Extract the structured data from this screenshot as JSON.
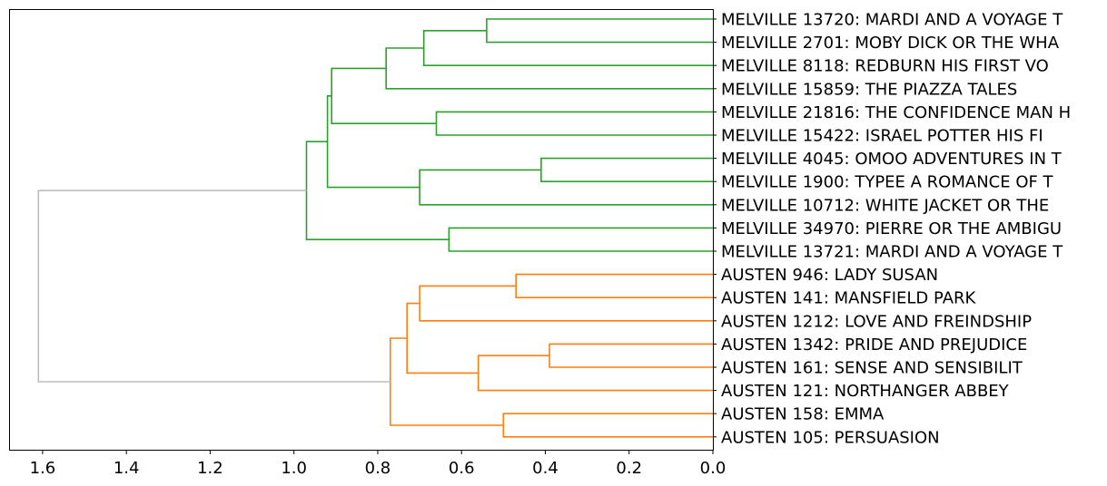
{
  "chart_data": {
    "type": "dendrogram",
    "orientation": "left",
    "xlim": [
      1.68,
      0.0
    ],
    "x_ticks": [
      1.6,
      1.4,
      1.2,
      1.0,
      0.8,
      0.6,
      0.4,
      0.2,
      0.0
    ],
    "x_tick_labels": [
      "1.6",
      "1.4",
      "1.2",
      "1.0",
      "0.8",
      "0.6",
      "0.4",
      "0.2",
      "0.0"
    ],
    "colors": {
      "melville_cluster": "#2ca02c",
      "austen_cluster": "#ff7f0e",
      "root": "#bdbdbd"
    },
    "leaves": [
      "MELVILLE 13720: MARDI AND A VOYAGE T",
      "MELVILLE 2701: MOBY DICK OR THE WHA",
      "MELVILLE 8118: REDBURN HIS FIRST VO",
      "MELVILLE 15859: THE PIAZZA TALES",
      "MELVILLE 21816: THE CONFIDENCE MAN H",
      "MELVILLE 15422: ISRAEL POTTER HIS FI",
      "MELVILLE 4045: OMOO ADVENTURES IN T",
      "MELVILLE 1900: TYPEE A ROMANCE OF T",
      "MELVILLE 10712: WHITE JACKET OR THE",
      "MELVILLE 34970: PIERRE OR THE AMBIGU",
      "MELVILLE 13721: MARDI AND A VOYAGE T",
      "AUSTEN 946: LADY SUSAN",
      "AUSTEN 141: MANSFIELD PARK",
      "AUSTEN 1212: LOVE AND FREINDSHIP",
      "AUSTEN 1342: PRIDE AND PREJUDICE",
      "AUSTEN 161: SENSE AND SENSIBILIT",
      "AUSTEN 121: NORTHANGER ABBEY",
      "AUSTEN 158: EMMA",
      "AUSTEN 105: PERSUASION"
    ],
    "merges": [
      {
        "id": "m1",
        "a": 0,
        "b": 1,
        "height": 0.54,
        "cluster": "melville_cluster"
      },
      {
        "id": "m2",
        "a": "m1",
        "b": 2,
        "height": 0.69,
        "cluster": "melville_cluster"
      },
      {
        "id": "m3",
        "a": "m2",
        "b": 3,
        "height": 0.78,
        "cluster": "melville_cluster"
      },
      {
        "id": "m4",
        "a": 4,
        "b": 5,
        "height": 0.66,
        "cluster": "melville_cluster"
      },
      {
        "id": "m5",
        "a": "m3",
        "b": "m4",
        "height": 0.91,
        "cluster": "melville_cluster"
      },
      {
        "id": "m6",
        "a": 6,
        "b": 7,
        "height": 0.41,
        "cluster": "melville_cluster"
      },
      {
        "id": "m7",
        "a": "m6",
        "b": 8,
        "height": 0.7,
        "cluster": "melville_cluster"
      },
      {
        "id": "m8",
        "a": "m5",
        "b": "m7",
        "height": 0.92,
        "cluster": "melville_cluster"
      },
      {
        "id": "m9",
        "a": 9,
        "b": 10,
        "height": 0.63,
        "cluster": "melville_cluster"
      },
      {
        "id": "m10",
        "a": "m8",
        "b": "m9",
        "height": 0.97,
        "cluster": "melville_cluster"
      },
      {
        "id": "a1",
        "a": 11,
        "b": 12,
        "height": 0.47,
        "cluster": "austen_cluster"
      },
      {
        "id": "a2",
        "a": "a1",
        "b": 13,
        "height": 0.7,
        "cluster": "austen_cluster"
      },
      {
        "id": "a3",
        "a": 14,
        "b": 15,
        "height": 0.39,
        "cluster": "austen_cluster"
      },
      {
        "id": "a4",
        "a": "a3",
        "b": 16,
        "height": 0.56,
        "cluster": "austen_cluster"
      },
      {
        "id": "a5",
        "a": "a2",
        "b": "a4",
        "height": 0.73,
        "cluster": "austen_cluster"
      },
      {
        "id": "a6",
        "a": 17,
        "b": 18,
        "height": 0.5,
        "cluster": "austen_cluster"
      },
      {
        "id": "a7",
        "a": "a5",
        "b": "a6",
        "height": 0.77,
        "cluster": "austen_cluster"
      },
      {
        "id": "root",
        "a": "m10",
        "b": "a7",
        "height": 1.61,
        "cluster": "root"
      }
    ]
  }
}
